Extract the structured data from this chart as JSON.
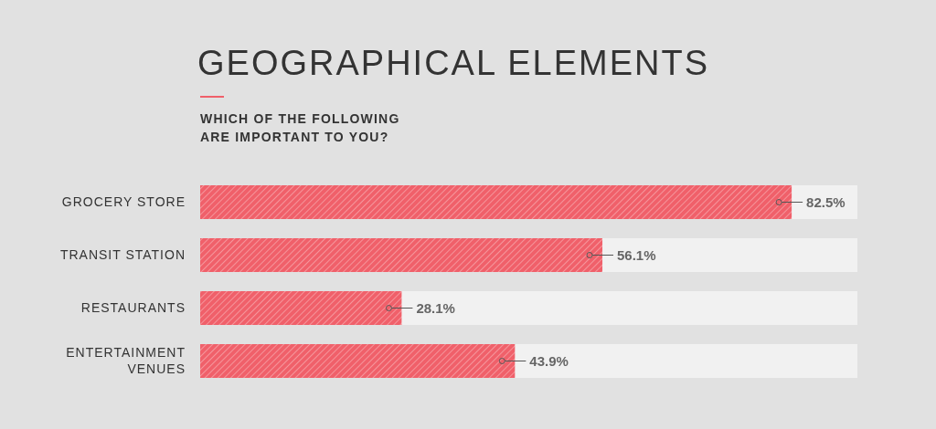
{
  "chart_data": {
    "type": "bar",
    "orientation": "horizontal",
    "title": "GEOGRAPHICAL ELEMENTS",
    "subtitle": "WHICH OF THE FOLLOWING\nARE IMPORTANT TO YOU?",
    "categories": [
      "GROCERY STORE",
      "TRANSIT STATION",
      "RESTAURANTS",
      "ENTERTAINMENT VENUES"
    ],
    "values": [
      82.5,
      56.1,
      28.1,
      43.9
    ],
    "value_labels": [
      "82.5%",
      "56.1%",
      "28.1%",
      "43.9%"
    ],
    "color": "#f0606a"
  }
}
